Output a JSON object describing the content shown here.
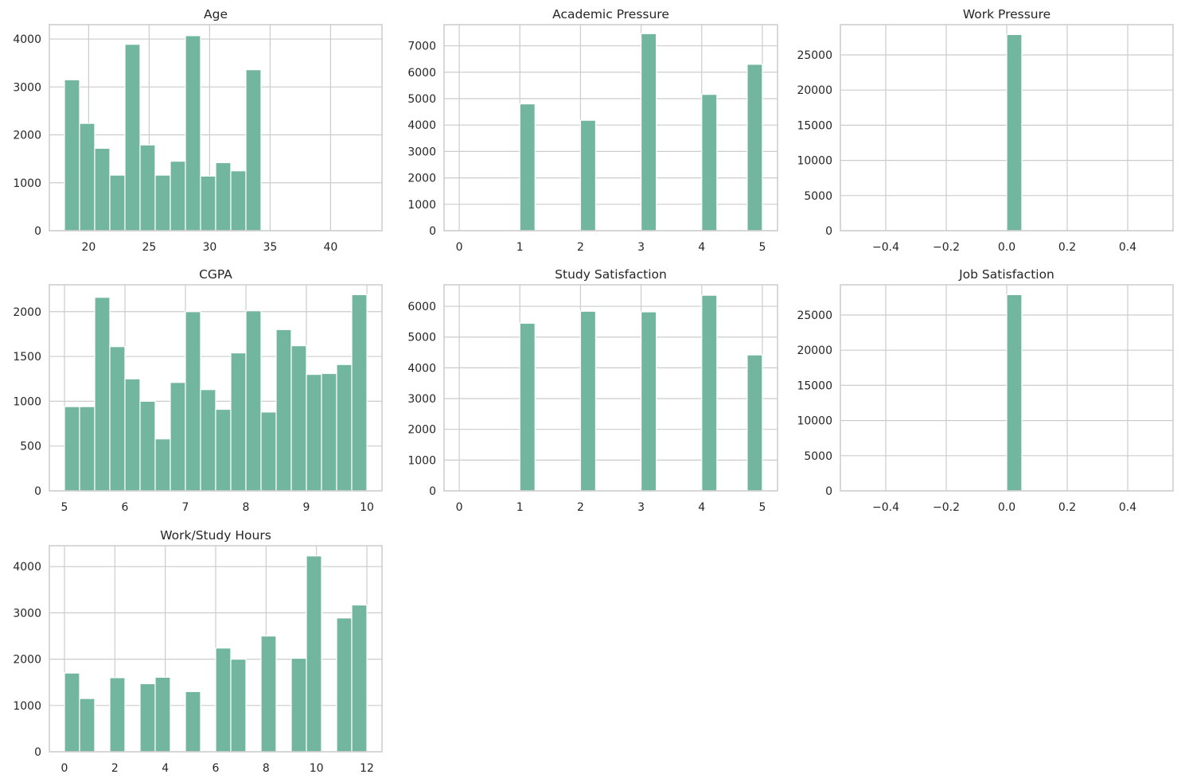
{
  "figure": {
    "background": "#ffffff",
    "bar_color": "#73b6a0",
    "grid_color": "#cccccc"
  },
  "chart_data": [
    {
      "type": "bar",
      "title": "Age",
      "xlabel": "",
      "ylabel": "",
      "xlim": [
        16.75,
        44.25
      ],
      "ylim": [
        0,
        4300
      ],
      "xticks": [
        20,
        25,
        30,
        35,
        40
      ],
      "yticks": [
        0,
        1000,
        2000,
        3000,
        4000
      ],
      "grid": true,
      "bins": [
        [
          18,
          19.25,
          3150
        ],
        [
          19.25,
          20.5,
          2240
        ],
        [
          20.5,
          21.75,
          1720
        ],
        [
          21.75,
          23,
          1160
        ],
        [
          23,
          24.25,
          3890
        ],
        [
          24.25,
          25.5,
          1790
        ],
        [
          25.5,
          26.75,
          1160
        ],
        [
          26.75,
          28,
          1450
        ],
        [
          28,
          29.25,
          4070
        ],
        [
          29.25,
          30.5,
          1140
        ],
        [
          30.5,
          31.75,
          1420
        ],
        [
          31.75,
          33,
          1250
        ],
        [
          33,
          34.25,
          3360
        ],
        [
          34.25,
          35.5,
          0
        ],
        [
          35.5,
          36.75,
          0
        ],
        [
          36.75,
          38,
          0
        ],
        [
          38,
          39.25,
          0
        ],
        [
          39.25,
          40.5,
          0
        ],
        [
          40.5,
          41.75,
          0
        ],
        [
          41.75,
          43,
          0
        ]
      ]
    },
    {
      "type": "bar",
      "title": "Academic Pressure",
      "xlabel": "",
      "ylabel": "",
      "xlim": [
        -0.25,
        5.25
      ],
      "ylim": [
        0,
        7800
      ],
      "xticks": [
        0,
        1,
        2,
        3,
        4,
        5
      ],
      "yticks": [
        0,
        1000,
        2000,
        3000,
        4000,
        5000,
        6000,
        7000
      ],
      "grid": true,
      "bins": [
        [
          0,
          0.25,
          0
        ],
        [
          0.25,
          0.5,
          0
        ],
        [
          0.5,
          0.75,
          0
        ],
        [
          0.75,
          1,
          0
        ],
        [
          1,
          1.25,
          4800
        ],
        [
          1.25,
          1.5,
          0
        ],
        [
          1.5,
          1.75,
          0
        ],
        [
          1.75,
          2,
          0
        ],
        [
          2,
          2.25,
          4180
        ],
        [
          2.25,
          2.5,
          0
        ],
        [
          2.5,
          2.75,
          0
        ],
        [
          2.75,
          3,
          0
        ],
        [
          3,
          3.25,
          7460
        ],
        [
          3.25,
          3.5,
          0
        ],
        [
          3.5,
          3.75,
          0
        ],
        [
          3.75,
          4,
          0
        ],
        [
          4,
          4.25,
          5160
        ],
        [
          4.25,
          4.5,
          0
        ],
        [
          4.5,
          4.75,
          0
        ],
        [
          4.75,
          5,
          6300
        ]
      ]
    },
    {
      "type": "bar",
      "title": "Work Pressure",
      "xlabel": "",
      "ylabel": "",
      "xlim": [
        -0.55,
        0.55
      ],
      "ylim": [
        0,
        29300
      ],
      "xticks": [
        -0.4,
        -0.2,
        0.0,
        0.2,
        0.4
      ],
      "xtick_labels": [
        "−0.4",
        "−0.2",
        "0.0",
        "0.2",
        "0.4"
      ],
      "yticks": [
        0,
        5000,
        10000,
        15000,
        20000,
        25000
      ],
      "grid": true,
      "bins": [
        [
          -0.5,
          -0.45,
          0
        ],
        [
          -0.45,
          -0.4,
          0
        ],
        [
          -0.4,
          -0.35,
          0
        ],
        [
          -0.35,
          -0.3,
          0
        ],
        [
          -0.3,
          -0.25,
          0
        ],
        [
          -0.25,
          -0.2,
          0
        ],
        [
          -0.2,
          -0.15,
          0
        ],
        [
          -0.15,
          -0.1,
          0
        ],
        [
          -0.1,
          -0.05,
          0
        ],
        [
          -0.05,
          0,
          0
        ],
        [
          0,
          0.05,
          27900
        ],
        [
          0.05,
          0.1,
          0
        ],
        [
          0.1,
          0.15,
          0
        ],
        [
          0.15,
          0.2,
          0
        ],
        [
          0.2,
          0.25,
          0
        ],
        [
          0.25,
          0.3,
          0
        ],
        [
          0.3,
          0.35,
          0
        ],
        [
          0.35,
          0.4,
          0
        ],
        [
          0.4,
          0.45,
          0
        ],
        [
          0.45,
          0.5,
          0
        ]
      ]
    },
    {
      "type": "bar",
      "title": "CGPA",
      "xlabel": "",
      "ylabel": "",
      "xlim": [
        4.75,
        10.25
      ],
      "ylim": [
        0,
        2300
      ],
      "xticks": [
        5,
        6,
        7,
        8,
        9,
        10
      ],
      "yticks": [
        0,
        500,
        1000,
        1500,
        2000
      ],
      "grid": true,
      "bins": [
        [
          5,
          5.25,
          940
        ],
        [
          5.25,
          5.5,
          940
        ],
        [
          5.5,
          5.75,
          2160
        ],
        [
          5.75,
          6,
          1610
        ],
        [
          6,
          6.25,
          1250
        ],
        [
          6.25,
          6.5,
          1000
        ],
        [
          6.5,
          6.75,
          580
        ],
        [
          6.75,
          7,
          1210
        ],
        [
          7,
          7.25,
          2000
        ],
        [
          7.25,
          7.5,
          1130
        ],
        [
          7.5,
          7.75,
          910
        ],
        [
          7.75,
          8,
          1540
        ],
        [
          8,
          8.25,
          2010
        ],
        [
          8.25,
          8.5,
          880
        ],
        [
          8.5,
          8.75,
          1800
        ],
        [
          8.75,
          9,
          1620
        ],
        [
          9,
          9.25,
          1300
        ],
        [
          9.25,
          9.5,
          1310
        ],
        [
          9.5,
          9.75,
          1410
        ],
        [
          9.75,
          10,
          2190
        ]
      ]
    },
    {
      "type": "bar",
      "title": "Study Satisfaction",
      "xlabel": "",
      "ylabel": "",
      "xlim": [
        -0.25,
        5.25
      ],
      "ylim": [
        0,
        6700
      ],
      "xticks": [
        0,
        1,
        2,
        3,
        4,
        5
      ],
      "yticks": [
        0,
        1000,
        2000,
        3000,
        4000,
        5000,
        6000
      ],
      "grid": true,
      "bins": [
        [
          0,
          0.25,
          0
        ],
        [
          0.25,
          0.5,
          0
        ],
        [
          0.5,
          0.75,
          0
        ],
        [
          0.75,
          1,
          0
        ],
        [
          1,
          1.25,
          5450
        ],
        [
          1.25,
          1.5,
          0
        ],
        [
          1.5,
          1.75,
          0
        ],
        [
          1.75,
          2,
          0
        ],
        [
          2,
          2.25,
          5840
        ],
        [
          2.25,
          2.5,
          0
        ],
        [
          2.5,
          2.75,
          0
        ],
        [
          2.75,
          3,
          0
        ],
        [
          3,
          3.25,
          5820
        ],
        [
          3.25,
          3.5,
          0
        ],
        [
          3.5,
          3.75,
          0
        ],
        [
          3.75,
          4,
          0
        ],
        [
          4,
          4.25,
          6360
        ],
        [
          4.25,
          4.5,
          0
        ],
        [
          4.5,
          4.75,
          0
        ],
        [
          4.75,
          5,
          4420
        ]
      ]
    },
    {
      "type": "bar",
      "title": "Job Satisfaction",
      "xlabel": "",
      "ylabel": "",
      "xlim": [
        -0.55,
        0.55
      ],
      "ylim": [
        0,
        29300
      ],
      "xticks": [
        -0.4,
        -0.2,
        0.0,
        0.2,
        0.4
      ],
      "xtick_labels": [
        "−0.4",
        "−0.2",
        "0.0",
        "0.2",
        "0.4"
      ],
      "yticks": [
        0,
        5000,
        10000,
        15000,
        20000,
        25000
      ],
      "grid": true,
      "bins": [
        [
          -0.5,
          -0.45,
          0
        ],
        [
          -0.45,
          -0.4,
          0
        ],
        [
          -0.4,
          -0.35,
          0
        ],
        [
          -0.35,
          -0.3,
          0
        ],
        [
          -0.3,
          -0.25,
          0
        ],
        [
          -0.25,
          -0.2,
          0
        ],
        [
          -0.2,
          -0.15,
          0
        ],
        [
          -0.15,
          -0.1,
          0
        ],
        [
          -0.1,
          -0.05,
          0
        ],
        [
          -0.05,
          0,
          0
        ],
        [
          0,
          0.05,
          27900
        ],
        [
          0.05,
          0.1,
          0
        ],
        [
          0.1,
          0.15,
          0
        ],
        [
          0.15,
          0.2,
          0
        ],
        [
          0.2,
          0.25,
          0
        ],
        [
          0.25,
          0.3,
          0
        ],
        [
          0.3,
          0.35,
          0
        ],
        [
          0.35,
          0.4,
          0
        ],
        [
          0.4,
          0.45,
          0
        ],
        [
          0.45,
          0.5,
          0
        ]
      ]
    },
    {
      "type": "bar",
      "title": "Work/Study Hours",
      "xlabel": "",
      "ylabel": "",
      "xlim": [
        -0.6,
        12.6
      ],
      "ylim": [
        0,
        4450
      ],
      "xticks": [
        0,
        2,
        4,
        6,
        8,
        10,
        12
      ],
      "yticks": [
        0,
        1000,
        2000,
        3000,
        4000
      ],
      "grid": true,
      "bins": [
        [
          0,
          0.6,
          1700
        ],
        [
          0.6,
          1.2,
          1150
        ],
        [
          1.2,
          1.8,
          0
        ],
        [
          1.8,
          2.4,
          1600
        ],
        [
          2.4,
          3,
          0
        ],
        [
          3,
          3.6,
          1470
        ],
        [
          3.6,
          4.2,
          1610
        ],
        [
          4.2,
          4.8,
          0
        ],
        [
          4.8,
          5.4,
          1300
        ],
        [
          5.4,
          6,
          0
        ],
        [
          6,
          6.6,
          2240
        ],
        [
          6.6,
          7.2,
          2000
        ],
        [
          7.2,
          7.8,
          0
        ],
        [
          7.8,
          8.4,
          2500
        ],
        [
          8.4,
          9,
          0
        ],
        [
          9,
          9.6,
          2020
        ],
        [
          9.6,
          10.2,
          4230
        ],
        [
          10.2,
          10.8,
          0
        ],
        [
          10.8,
          11.4,
          2890
        ],
        [
          11.4,
          12,
          3170
        ]
      ]
    }
  ]
}
